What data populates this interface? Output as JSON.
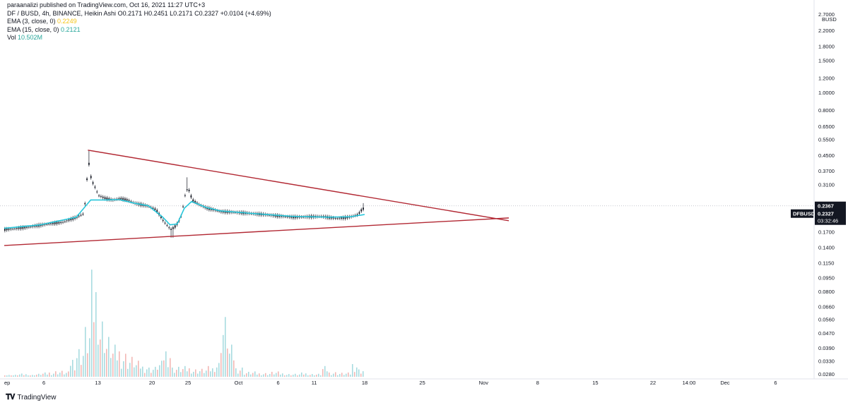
{
  "header": {
    "published": "paraanalizi published on TradingView.com, Oct 16, 2021 11:27 UTC+3",
    "symbol_line": "DF / BUSD, 4h, BINANCE, Heikin Ashi",
    "ohlc": "O0.2171  H0.2451  L0.2171  C0.2327  +0.0104 (+4.69%)",
    "ema3_label": "EMA (3, close, 0)",
    "ema3_value": "0.2249",
    "ema15_label": "EMA (15, close, 0)",
    "ema15_value": "0.2121",
    "vol_label": "Vol",
    "vol_value": "10.502M"
  },
  "colors": {
    "ema3": "#f5c518",
    "ema15": "#26c6da",
    "candle": "#131722",
    "trendline": "#b22833",
    "vol_up": "#a8dbe0",
    "vol_down": "#f2b8b5",
    "last_price_line": "#b2b5be"
  },
  "footer": {
    "brand": "TradingView"
  },
  "chart_data": {
    "type": "candlestick",
    "scale": "log",
    "currency": "BUSD",
    "y_ticks": [
      "2.7000",
      "2.2000",
      "1.8000",
      "1.5000",
      "1.2000",
      "1.0000",
      "0.8000",
      "0.6500",
      "0.5500",
      "0.4500",
      "0.3700",
      "0.3100",
      "0.2000",
      "0.1700",
      "0.1400",
      "0.1150",
      "0.0950",
      "0.0800",
      "0.0660",
      "0.0560",
      "0.0470",
      "0.0390",
      "0.0330",
      "0.0280"
    ],
    "x_ticks": [
      "ep",
      "6",
      "13",
      "20",
      "25",
      "Oct",
      "6",
      "11",
      "18",
      "25",
      "Nov",
      "8",
      "15",
      "22",
      "14:00",
      "Dec",
      "6"
    ],
    "last_price_tag": {
      "symbol": "DFBUSD",
      "price": "0.2367",
      "close": "0.2327",
      "countdown": "03:32:46"
    },
    "price_path": [
      [
        0,
        0.175
      ],
      [
        3,
        0.18
      ],
      [
        6,
        0.188
      ],
      [
        8,
        0.192
      ],
      [
        10,
        0.205
      ],
      [
        11,
        0.215
      ],
      [
        11.6,
        0.42
      ],
      [
        12,
        0.33
      ],
      [
        12.5,
        0.3
      ],
      [
        13,
        0.27
      ],
      [
        14,
        0.26
      ],
      [
        15,
        0.255
      ],
      [
        16,
        0.26
      ],
      [
        17,
        0.255
      ],
      [
        18,
        0.245
      ],
      [
        19,
        0.24
      ],
      [
        20,
        0.235
      ],
      [
        21,
        0.225
      ],
      [
        21.5,
        0.21
      ],
      [
        22,
        0.195
      ],
      [
        22.5,
        0.185
      ],
      [
        23,
        0.175
      ],
      [
        23.5,
        0.18
      ],
      [
        24,
        0.19
      ],
      [
        24.5,
        0.21
      ],
      [
        25,
        0.27
      ],
      [
        25.4,
        0.3
      ],
      [
        26,
        0.255
      ],
      [
        27,
        0.24
      ],
      [
        28,
        0.23
      ],
      [
        29,
        0.225
      ],
      [
        30,
        0.22
      ],
      [
        32,
        0.218
      ],
      [
        34,
        0.215
      ],
      [
        36,
        0.212
      ],
      [
        38,
        0.208
      ],
      [
        40,
        0.205
      ],
      [
        42,
        0.206
      ],
      [
        44,
        0.207
      ],
      [
        45,
        0.204
      ],
      [
        46,
        0.202
      ],
      [
        47,
        0.203
      ],
      [
        48,
        0.206
      ],
      [
        49,
        0.212
      ],
      [
        49.5,
        0.225
      ],
      [
        50,
        0.2327
      ]
    ],
    "ema15_path": [
      [
        0,
        0.178
      ],
      [
        5,
        0.186
      ],
      [
        10,
        0.205
      ],
      [
        12,
        0.255
      ],
      [
        14,
        0.255
      ],
      [
        16,
        0.256
      ],
      [
        18,
        0.245
      ],
      [
        20,
        0.237
      ],
      [
        22,
        0.205
      ],
      [
        23,
        0.186
      ],
      [
        24,
        0.188
      ],
      [
        25,
        0.23
      ],
      [
        26,
        0.25
      ],
      [
        28,
        0.232
      ],
      [
        30,
        0.222
      ],
      [
        35,
        0.214
      ],
      [
        40,
        0.207
      ],
      [
        45,
        0.205
      ],
      [
        48,
        0.206
      ],
      [
        50,
        0.2121
      ]
    ],
    "wick_highs": [
      [
        11.6,
        0.48
      ],
      [
        25.2,
        0.34
      ],
      [
        49.6,
        0.2451
      ]
    ],
    "wick_lows": [
      [
        23.2,
        0.158
      ]
    ],
    "volume_path": [
      0.02,
      0.02,
      0.03,
      0.02,
      0.03,
      0.04,
      0.05,
      0.06,
      0.05,
      0.2,
      0.3,
      0.5,
      1.0,
      0.6,
      0.4,
      0.3,
      0.25,
      0.2,
      0.15,
      0.12,
      0.1,
      0.15,
      0.3,
      0.1,
      0.1,
      0.1,
      0.08,
      0.08,
      0.1,
      0.15,
      0.6,
      0.3,
      0.1,
      0.05,
      0.05,
      0.04,
      0.04,
      0.05,
      0.04,
      0.03,
      0.03,
      0.04,
      0.03,
      0.03,
      0.1,
      0.05,
      0.04,
      0.04,
      0.15,
      0.08
    ],
    "trendlines": [
      {
        "name": "upper",
        "from": [
          11.6,
          0.48
        ],
        "to": [
          70,
          0.196
        ]
      },
      {
        "name": "lower",
        "from": [
          0,
          0.143
        ],
        "to": [
          70,
          0.203
        ]
      }
    ],
    "grid": false
  }
}
